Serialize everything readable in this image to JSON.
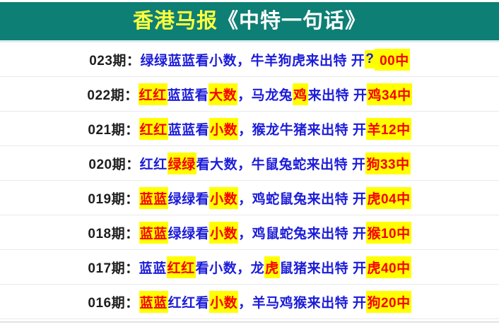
{
  "header": {
    "brand": "香港马报",
    "title": "《中特一句话》"
  },
  "colors": {
    "header_bg": "#0e7f75",
    "brand_text": "#fdff3d",
    "title_text": "#ffffff",
    "blue": "#1c1cd9",
    "red": "#f60000",
    "highlight_bg": "#ffff00",
    "period_text": "#1e1e1e",
    "row_divider": "#e9e9e9",
    "header_border": "#d9edee",
    "bottom_divider": "#e2e2e2"
  },
  "rows": [
    {
      "period": "023期：",
      "segments": [
        {
          "text": "绿绿蓝蓝看小数，牛羊狗虎来出特 开",
          "color": "blue",
          "highlight": false
        },
        {
          "text": "?",
          "color": "blue",
          "highlight": true
        },
        {
          "text": " 00中",
          "color": "red",
          "highlight": true
        }
      ]
    },
    {
      "period": "022期：",
      "segments": [
        {
          "text": "红红",
          "color": "red",
          "highlight": true
        },
        {
          "text": "蓝蓝看",
          "color": "blue",
          "highlight": false
        },
        {
          "text": "大数",
          "color": "red",
          "highlight": true
        },
        {
          "text": "，马龙兔",
          "color": "blue",
          "highlight": false
        },
        {
          "text": "鸡",
          "color": "red",
          "highlight": true
        },
        {
          "text": "来出特 开",
          "color": "blue",
          "highlight": false
        },
        {
          "text": "鸡34中",
          "color": "red",
          "highlight": true
        }
      ]
    },
    {
      "period": "021期：",
      "segments": [
        {
          "text": "红红",
          "color": "red",
          "highlight": true
        },
        {
          "text": "蓝蓝看",
          "color": "blue",
          "highlight": false
        },
        {
          "text": "小数",
          "color": "red",
          "highlight": true
        },
        {
          "text": "，猴龙牛猪来出特 开",
          "color": "blue",
          "highlight": false
        },
        {
          "text": "羊12中",
          "color": "red",
          "highlight": true
        }
      ]
    },
    {
      "period": "020期：",
      "segments": [
        {
          "text": "红红",
          "color": "blue",
          "highlight": false
        },
        {
          "text": "绿绿",
          "color": "red",
          "highlight": true
        },
        {
          "text": "看大数，牛鼠兔蛇来出特 开",
          "color": "blue",
          "highlight": false
        },
        {
          "text": "狗33中",
          "color": "red",
          "highlight": true
        }
      ]
    },
    {
      "period": "019期：",
      "segments": [
        {
          "text": "蓝蓝",
          "color": "red",
          "highlight": true
        },
        {
          "text": "绿绿看",
          "color": "blue",
          "highlight": false
        },
        {
          "text": "小数",
          "color": "red",
          "highlight": true
        },
        {
          "text": "，鸡蛇鼠兔来出特 开",
          "color": "blue",
          "highlight": false
        },
        {
          "text": "虎04中",
          "color": "red",
          "highlight": true
        }
      ]
    },
    {
      "period": "018期：",
      "segments": [
        {
          "text": "蓝蓝",
          "color": "red",
          "highlight": true
        },
        {
          "text": "绿绿看",
          "color": "blue",
          "highlight": false
        },
        {
          "text": "小数",
          "color": "red",
          "highlight": true
        },
        {
          "text": "，鸡鼠蛇兔来出特 开",
          "color": "blue",
          "highlight": false
        },
        {
          "text": "猴10中",
          "color": "red",
          "highlight": true
        }
      ]
    },
    {
      "period": "017期：",
      "segments": [
        {
          "text": "蓝蓝",
          "color": "blue",
          "highlight": false
        },
        {
          "text": "红红",
          "color": "red",
          "highlight": true
        },
        {
          "text": "看小数，龙",
          "color": "blue",
          "highlight": false
        },
        {
          "text": "虎",
          "color": "red",
          "highlight": true
        },
        {
          "text": "鼠猪来出特 开",
          "color": "blue",
          "highlight": false
        },
        {
          "text": "虎40中",
          "color": "red",
          "highlight": true
        }
      ]
    },
    {
      "period": "016期：",
      "segments": [
        {
          "text": "蓝蓝",
          "color": "red",
          "highlight": true
        },
        {
          "text": "红红看",
          "color": "blue",
          "highlight": false
        },
        {
          "text": "小数",
          "color": "red",
          "highlight": true
        },
        {
          "text": "，羊马鸡猴来出特 开",
          "color": "blue",
          "highlight": false
        },
        {
          "text": "狗20中",
          "color": "red",
          "highlight": true
        }
      ]
    }
  ]
}
